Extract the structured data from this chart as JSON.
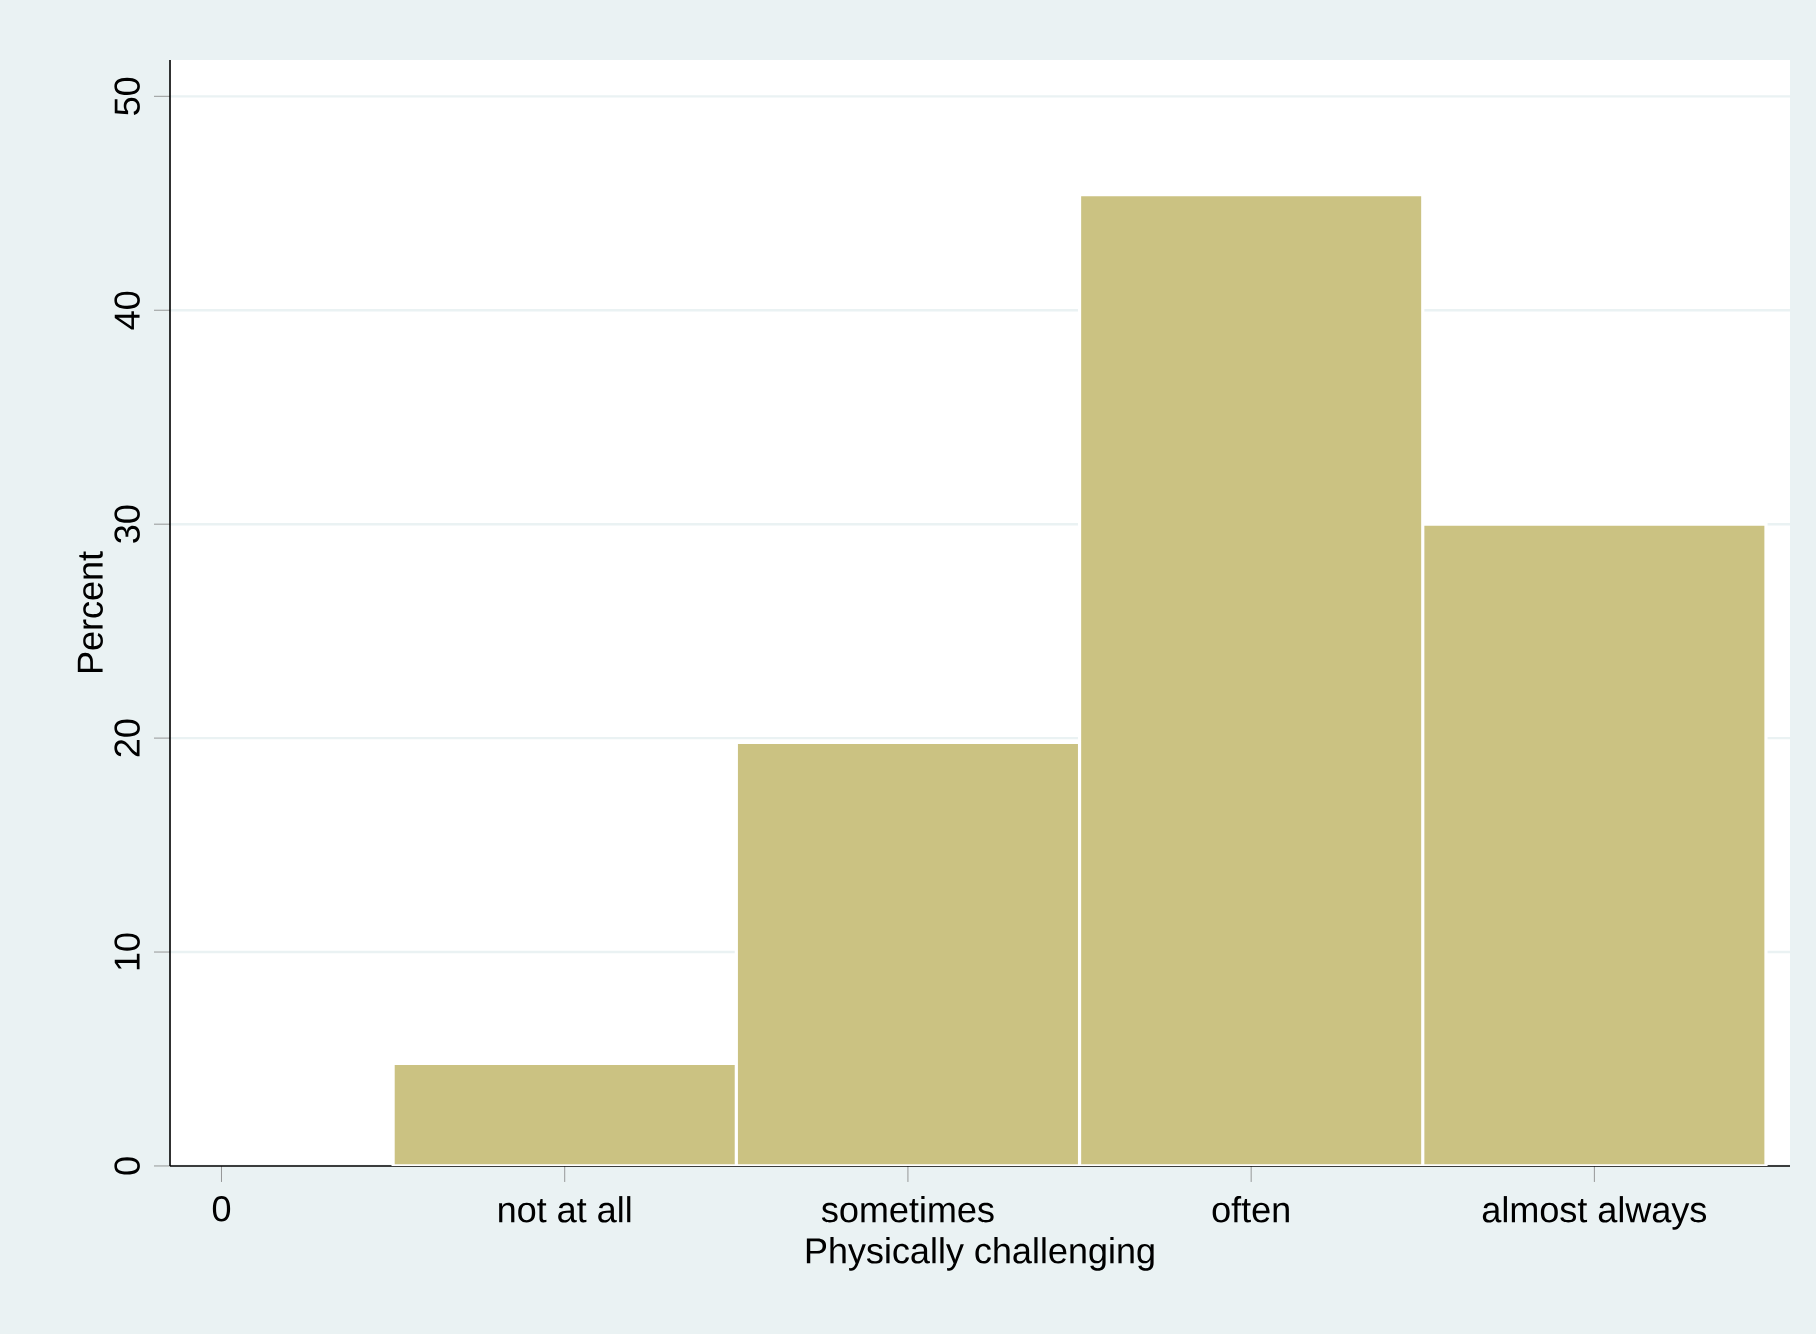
{
  "chart_data": {
    "type": "bar",
    "xlabel": "Physically challenging",
    "ylabel": "Percent",
    "categories": [
      "0",
      "not at all",
      "sometimes",
      "often",
      "almost always"
    ],
    "values": [
      null,
      4.8,
      19.8,
      45.4,
      30.0
    ],
    "color": "#cbc282",
    "ylim": [
      0,
      51.7
    ],
    "yticks": [
      0,
      10,
      20,
      30,
      40,
      50
    ],
    "grid": "y"
  }
}
